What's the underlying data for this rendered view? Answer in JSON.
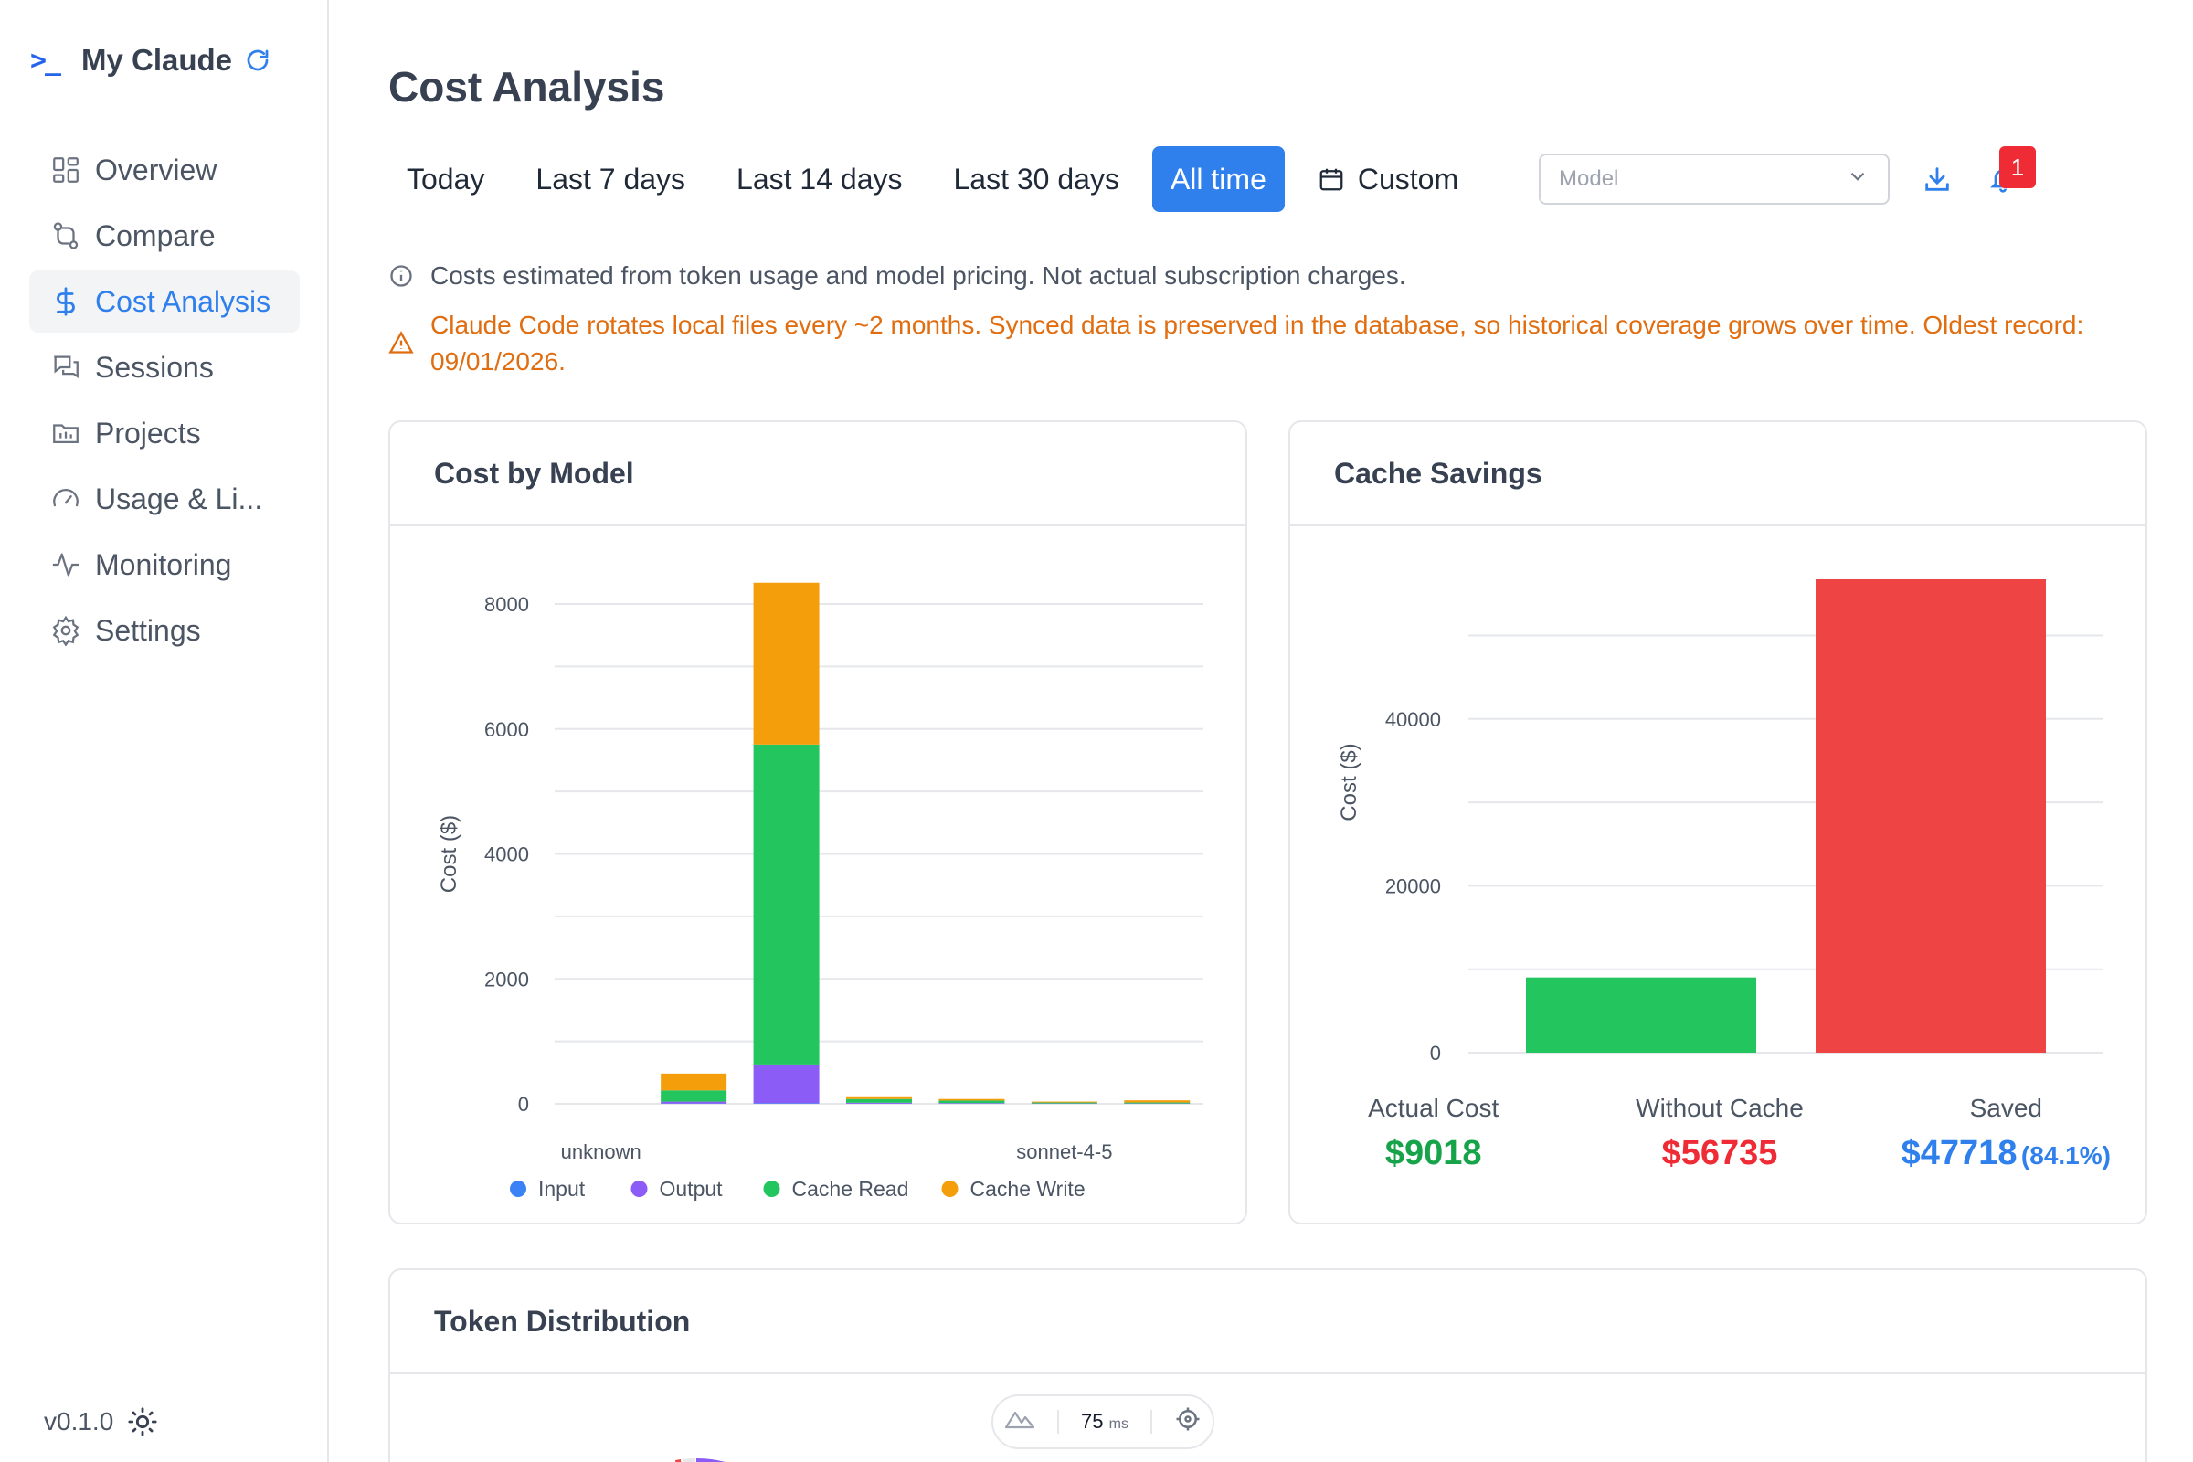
{
  "app": {
    "name": "My Claude",
    "version": "v0.1.0"
  },
  "sidebar": {
    "items": [
      {
        "label": "Overview",
        "icon": "grid-icon"
      },
      {
        "label": "Compare",
        "icon": "compare-icon"
      },
      {
        "label": "Cost Analysis",
        "icon": "dollar-icon",
        "active": true
      },
      {
        "label": "Sessions",
        "icon": "chat-icon"
      },
      {
        "label": "Projects",
        "icon": "folder-icon"
      },
      {
        "label": "Usage & Li...",
        "icon": "gauge-icon"
      },
      {
        "label": "Monitoring",
        "icon": "pulse-icon"
      },
      {
        "label": "Settings",
        "icon": "gear-icon"
      }
    ]
  },
  "page": {
    "title": "Cost Analysis"
  },
  "filters": {
    "ranges": [
      "Today",
      "Last 7 days",
      "Last 14 days",
      "Last 30 days",
      "All time"
    ],
    "active": "All time",
    "custom_label": "Custom",
    "model_placeholder": "Model",
    "notification_count": "1"
  },
  "notes": {
    "info": "Costs estimated from token usage and model pricing. Not actual subscription charges.",
    "warning": "Claude Code rotates local files every ~2 months. Synced data is preserved in the database, so historical coverage grows over time. Oldest record: 09/01/2026."
  },
  "cards": {
    "model_title": "Cost by Model",
    "cache_title": "Cache Savings",
    "token_title": "Token Distribution"
  },
  "chart_data": [
    {
      "type": "bar",
      "stacked": true,
      "title": "Cost by Model",
      "ylabel": "Cost ($)",
      "ylim": [
        0,
        8000
      ],
      "yticks": [
        0,
        2000,
        4000,
        6000,
        8000
      ],
      "tick_labels": [
        "unknown",
        "sonnet-4-5"
      ],
      "categories": [
        "c1",
        "c2",
        "c3",
        "c4",
        "c5",
        "c6",
        "c7"
      ],
      "series": [
        {
          "name": "Input",
          "color": "#3b82f6",
          "values": [
            0,
            5,
            10,
            2,
            2,
            1,
            1
          ]
        },
        {
          "name": "Output",
          "color": "#8b5cf6",
          "values": [
            0,
            30,
            620,
            15,
            10,
            5,
            5
          ]
        },
        {
          "name": "Cache Read",
          "color": "#22c55e",
          "values": [
            0,
            180,
            5120,
            60,
            40,
            15,
            15
          ]
        },
        {
          "name": "Cache Write",
          "color": "#f59e0b",
          "values": [
            0,
            270,
            2590,
            43,
            25,
            15,
            35
          ]
        }
      ],
      "grid": true,
      "legend": "bottom"
    },
    {
      "type": "bar",
      "title": "Cache Savings",
      "ylabel": "Cost ($)",
      "ylim": [
        0,
        56735
      ],
      "yticks": [
        0,
        20000,
        40000
      ],
      "xtick": "0",
      "series": [
        {
          "name": "Actual Cost",
          "color": "#22c55e",
          "values": [
            9018
          ]
        },
        {
          "name": "Without Cache",
          "color": "#ef4444",
          "values": [
            56735
          ]
        }
      ],
      "grid": true,
      "legend": "bottom"
    }
  ],
  "cache_stats": {
    "actual_label": "Actual Cost",
    "actual_value": "$9018",
    "without_label": "Without Cache",
    "without_value": "$56735",
    "saved_label": "Saved",
    "saved_value": "$47718",
    "saved_pct": "(84.1%)"
  },
  "perf": {
    "value": "75",
    "unit": "ms"
  }
}
